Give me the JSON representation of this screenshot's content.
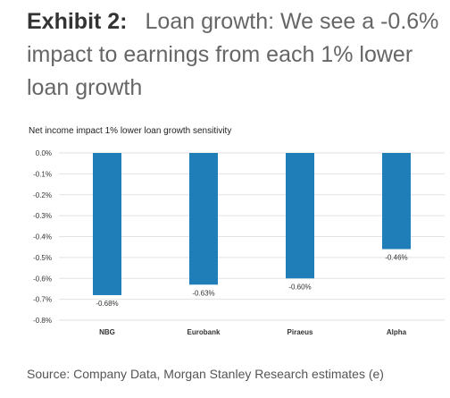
{
  "exhibit": {
    "label": "Exhibit 2:",
    "title": "Loan growth: We see a -0.6% impact to earnings from each 1% lower loan growth"
  },
  "source": "Source: Company Data, Morgan Stanley Research estimates (e)",
  "colors": {
    "bar": "#1f7db8",
    "grid": "#e2e2e2",
    "text": "#333333"
  },
  "chart_data": {
    "type": "bar",
    "title": "Net income impact 1% lower loan growth sensitivity",
    "categories": [
      "NBG",
      "Eurobank",
      "Piraeus",
      "Alpha"
    ],
    "values": [
      -0.68,
      -0.63,
      -0.6,
      -0.46
    ],
    "data_labels": [
      "-0.68%",
      "-0.63%",
      "-0.60%",
      "-0.46%"
    ],
    "ylim": [
      -0.8,
      0.0
    ],
    "yticks": [
      "0.0%",
      "-0.1%",
      "-0.2%",
      "-0.3%",
      "-0.4%",
      "-0.5%",
      "-0.6%",
      "-0.7%",
      "-0.8%"
    ],
    "grid": true,
    "xlabel": "",
    "ylabel": ""
  }
}
